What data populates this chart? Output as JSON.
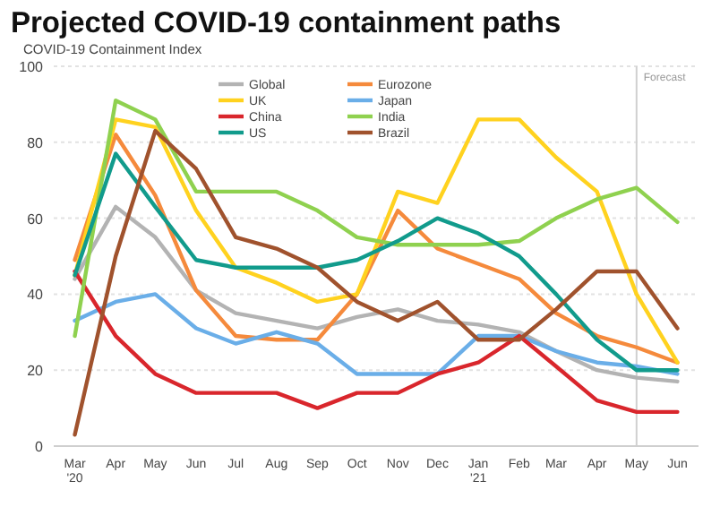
{
  "chart_data": {
    "type": "line",
    "title": "Projected COVID-19 containment paths",
    "ylabel": "COVID-19 Containment Index",
    "x": [
      "2020-03",
      "2020-04",
      "2020-05",
      "2020-06",
      "2020-07",
      "2020-08",
      "2020-09",
      "2020-10",
      "2020-11",
      "2020-12",
      "2021-01",
      "2021-02",
      "2021-03",
      "2021-04",
      "2021-05",
      "2021-06"
    ],
    "xlim": [
      "2020-02-14",
      "2021-06-17"
    ],
    "xticks": [
      {
        "value": "2020-03",
        "label": "Mar\n'20"
      },
      {
        "value": "2020-04",
        "label": "Apr"
      },
      {
        "value": "2020-05",
        "label": "May"
      },
      {
        "value": "2020-06",
        "label": "Jun"
      },
      {
        "value": "2020-07",
        "label": "Jul"
      },
      {
        "value": "2020-08",
        "label": "Aug"
      },
      {
        "value": "2020-09",
        "label": "Sep"
      },
      {
        "value": "2020-10",
        "label": "Oct"
      },
      {
        "value": "2020-11",
        "label": "Nov"
      },
      {
        "value": "2020-12",
        "label": "Dec"
      },
      {
        "value": "2021-01",
        "label": "Jan\n'21"
      },
      {
        "value": "2021-02",
        "label": "Feb"
      },
      {
        "value": "2021-03",
        "label": "Mar"
      },
      {
        "value": "2021-04",
        "label": "Apr"
      },
      {
        "value": "2021-05",
        "label": "May"
      },
      {
        "value": "2021-06",
        "label": "Jun"
      }
    ],
    "ylim": [
      0,
      100
    ],
    "yticks": [
      0,
      20,
      40,
      60,
      80,
      100
    ],
    "grid": "y",
    "legend": "top",
    "marker": "none",
    "line_style": "solid",
    "ref_lines": [
      {
        "axis": "x",
        "value": "2021-05",
        "label": "Forecast",
        "color": "#d0d0d0"
      }
    ],
    "series": [
      {
        "name": "Global",
        "color": "#b3b3b3",
        "values": [
          44,
          63,
          55,
          41,
          35,
          33,
          31,
          34,
          36,
          33,
          32,
          30,
          25,
          20,
          18,
          17
        ]
      },
      {
        "name": "Eurozone",
        "color": "#f58a3c",
        "values": [
          49,
          82,
          66,
          41,
          29,
          28,
          28,
          40,
          62,
          52,
          48,
          44,
          35,
          29,
          26,
          22
        ]
      },
      {
        "name": "UK",
        "color": "#ffd21f",
        "values": [
          45,
          86,
          84,
          62,
          47,
          43,
          38,
          40,
          67,
          64,
          86,
          86,
          76,
          67,
          40,
          22
        ]
      },
      {
        "name": "Japan",
        "color": "#6aaee8",
        "values": [
          33,
          38,
          40,
          31,
          27,
          30,
          27,
          19,
          19,
          19,
          29,
          29,
          25,
          22,
          21,
          19
        ]
      },
      {
        "name": "China",
        "color": "#d9262c",
        "values": [
          46,
          29,
          19,
          14,
          14,
          14,
          10,
          14,
          14,
          19,
          22,
          29,
          21,
          12,
          9,
          9
        ]
      },
      {
        "name": "India",
        "color": "#8fd14f",
        "values": [
          29,
          91,
          86,
          67,
          67,
          67,
          62,
          55,
          53,
          53,
          53,
          54,
          60,
          65,
          68,
          59
        ]
      },
      {
        "name": "US",
        "color": "#119b8c",
        "values": [
          45,
          77,
          63,
          49,
          47,
          47,
          47,
          49,
          54,
          60,
          56,
          50,
          40,
          28,
          20,
          20
        ]
      },
      {
        "name": "Brazil",
        "color": "#a0522d",
        "values": [
          3,
          50,
          83,
          73,
          55,
          52,
          47,
          38,
          33,
          38,
          28,
          28,
          36,
          46,
          46,
          31
        ]
      }
    ]
  }
}
